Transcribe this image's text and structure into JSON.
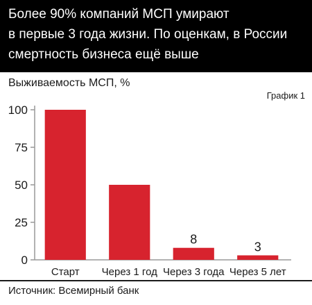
{
  "header": {
    "title_lines": [
      "Более 90% компаний МСП умирают",
      "в первые 3 года жизни. По оценкам, в России",
      "смертность бизнеса ещё выше"
    ]
  },
  "chart_label": "График 1",
  "source": "Источник: Всемирный банк",
  "chart_data": {
    "type": "bar",
    "title": "Более 90% компаний МСП умирают в первые 3 года жизни. По оценкам, в России смертность бизнеса ещё выше",
    "ylabel": "Выживаемость МСП, %",
    "xlabel": "",
    "categories": [
      "Старт",
      "Через 1 год",
      "Через 3 года",
      "Через 5 лет"
    ],
    "values": [
      100,
      50,
      8,
      3
    ],
    "data_labels": [
      "",
      "",
      "8",
      "3"
    ],
    "ylim": [
      0,
      100
    ],
    "yticks": [
      0,
      25,
      50,
      75,
      100
    ],
    "grid": false,
    "legend": "none",
    "bar_color": "#d7232e"
  },
  "colors": {
    "header_bg": "#000000",
    "header_text": "#ffffff",
    "axis": "#999999",
    "text": "#1a1a1a"
  }
}
